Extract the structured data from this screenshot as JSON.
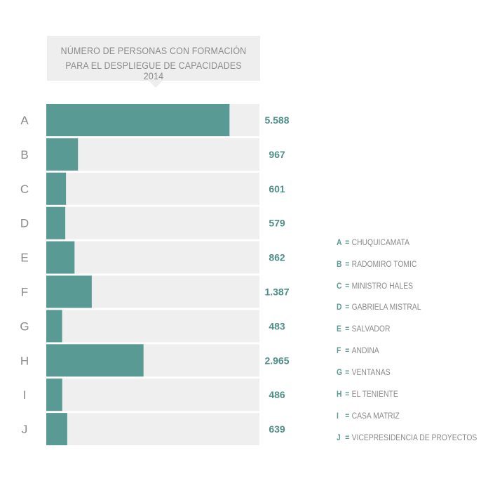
{
  "title": {
    "line1": "NÚMERO DE PERSONAS CON FORMACIÓN",
    "line2": "PARA EL DESPLIEGUE DE CAPACIDADES 2014"
  },
  "colors": {
    "bar": "#5a9a94",
    "track": "#efefef",
    "row_label": "#8a8a8a",
    "value": "#4f8f89"
  },
  "chart_data": {
    "type": "bar",
    "orientation": "horizontal",
    "categories": [
      "A",
      "B",
      "C",
      "D",
      "E",
      "F",
      "G",
      "H",
      "I",
      "J"
    ],
    "values": [
      5588,
      967,
      601,
      579,
      862,
      1387,
      483,
      2965,
      486,
      639
    ],
    "value_labels": [
      "5.588",
      "967",
      "601",
      "579",
      "862",
      "1.387",
      "483",
      "2.965",
      "486",
      "639"
    ],
    "title": "NÚMERO DE PERSONAS CON FORMACIÓN PARA EL DESPLIEGUE DE CAPACIDADES 2014",
    "xlim": [
      0,
      6500
    ],
    "grid": false,
    "legend": "right"
  },
  "legend": {
    "separator": "=",
    "items": [
      {
        "key": "A",
        "label": "CHUQUICAMATA"
      },
      {
        "key": "B",
        "label": "RADOMIRO TOMIC"
      },
      {
        "key": "C",
        "label": "MINISTRO HALES"
      },
      {
        "key": "D",
        "label": "GABRIELA MISTRAL"
      },
      {
        "key": "E",
        "label": "SALVADOR"
      },
      {
        "key": "F",
        "label": "ANDINA"
      },
      {
        "key": "G",
        "label": "VENTANAS"
      },
      {
        "key": "H",
        "label": "EL TENIENTE"
      },
      {
        "key": "I",
        "label": "CASA MATRIZ"
      },
      {
        "key": "J",
        "label": "VICEPRESIDENCIA DE PROYECTOS"
      }
    ]
  }
}
